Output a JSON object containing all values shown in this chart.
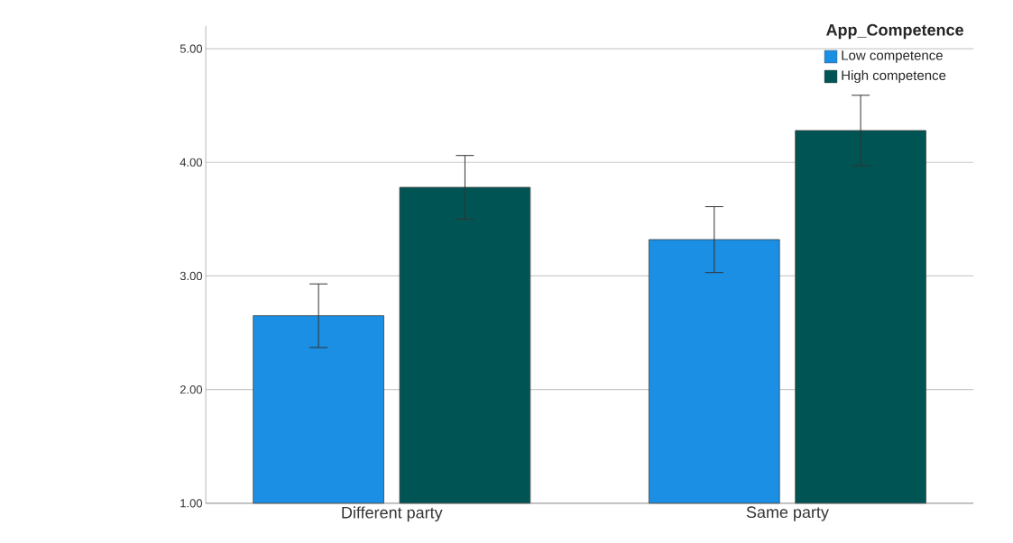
{
  "chart_data": {
    "type": "bar",
    "categories": [
      "Different party",
      "Same party"
    ],
    "legend_title": "App_Competence",
    "series": [
      {
        "name": "Low competence",
        "color": "#1a8fe3",
        "values": [
          2.65,
          3.32
        ],
        "errors": [
          0.28,
          0.29
        ]
      },
      {
        "name": "High competence",
        "color": "#005454",
        "values": [
          3.78,
          4.28
        ],
        "errors": [
          0.28,
          0.31
        ]
      }
    ],
    "ylim": [
      1,
      5.2
    ],
    "yticks": [
      {
        "value": 1,
        "label": "1.00"
      },
      {
        "value": 2,
        "label": "2.00"
      },
      {
        "value": 3,
        "label": "3.00"
      },
      {
        "value": 4,
        "label": "4.00"
      },
      {
        "value": 5,
        "label": "5.00"
      }
    ],
    "grid": "y",
    "legend": "top right"
  }
}
